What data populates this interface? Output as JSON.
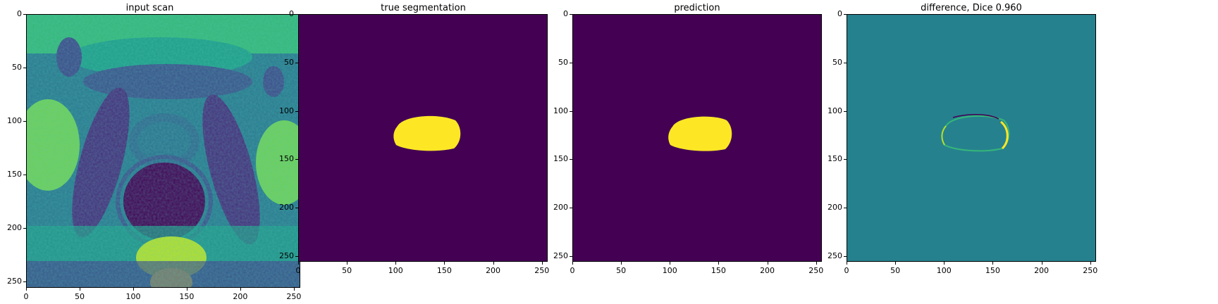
{
  "panels": [
    {
      "title": "input scan",
      "kind": "scan"
    },
    {
      "title": "true segmentation",
      "kind": "truth"
    },
    {
      "title": "prediction",
      "kind": "pred"
    },
    {
      "title": "difference, Dice 0.960",
      "kind": "diff"
    }
  ],
  "axes": {
    "x_ticks": [
      "0",
      "50",
      "100",
      "150",
      "200",
      "250"
    ],
    "y_ticks": [
      "0",
      "50",
      "100",
      "150",
      "200",
      "250"
    ],
    "range": [
      0,
      256
    ]
  },
  "colors": {
    "viridis_dark": "#440154",
    "viridis_mid": "#26818e",
    "viridis_yellow": "#fde725",
    "viridis_green": "#35b779"
  }
}
